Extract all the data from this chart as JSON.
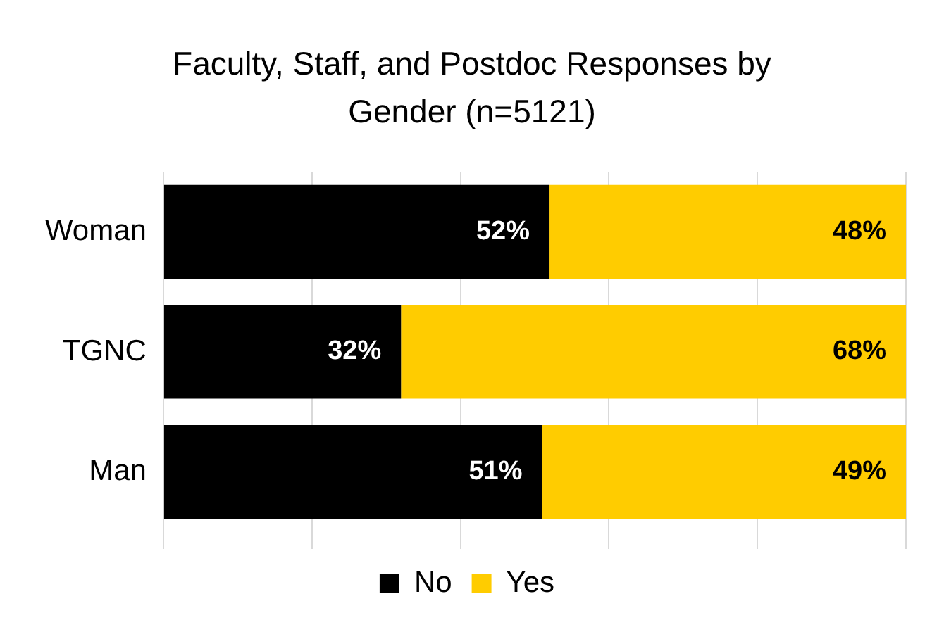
{
  "chart_data": {
    "type": "bar",
    "title": "Faculty, Staff, and Postdoc Responses by Gender (n=5121)",
    "orientation": "horizontal",
    "stacked": true,
    "categories": [
      "Woman",
      "TGNC",
      "Man"
    ],
    "series": [
      {
        "name": "No",
        "color": "#000000",
        "values": [
          52,
          32,
          51
        ],
        "value_labels": [
          "52%",
          "32%",
          "51%"
        ]
      },
      {
        "name": "Yes",
        "color": "#ffcc00",
        "values": [
          48,
          68,
          49
        ],
        "value_labels": [
          "48%",
          "68%",
          "49%"
        ]
      }
    ],
    "grid": "x",
    "legend": "bottom",
    "tick_labels": "y"
  }
}
